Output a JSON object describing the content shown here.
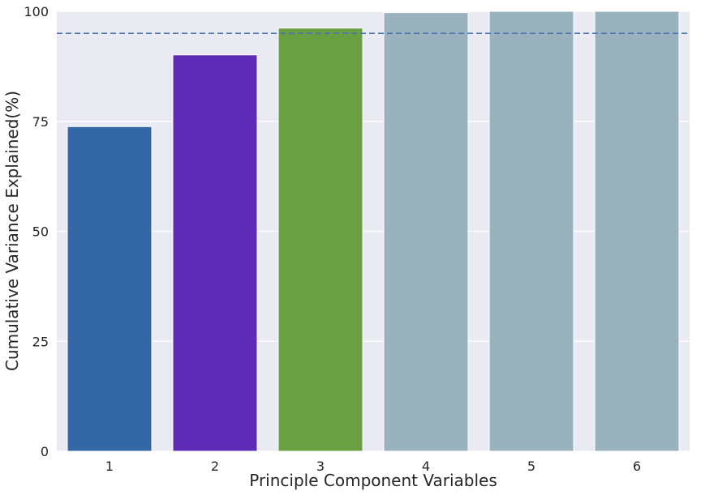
{
  "chart_data": {
    "type": "bar",
    "title": "",
    "xlabel": "Principle Component Variables",
    "ylabel": "Cumulative Variance Explained(%)",
    "categories": [
      "1",
      "2",
      "3",
      "4",
      "5",
      "6"
    ],
    "values": [
      73.8,
      90.1,
      96.2,
      99.7,
      100.0,
      100.0
    ],
    "bar_colors": [
      "#3468a4",
      "#5e2bb6",
      "#69a041",
      "#9ab2bd",
      "#9ab2bd",
      "#9ab2bd"
    ],
    "ylim": [
      0,
      100
    ],
    "yticks": [
      0,
      25,
      50,
      75,
      100
    ],
    "reference_line": {
      "y": 95,
      "style": "dashed",
      "color": "#4c72b0"
    },
    "grid": true,
    "background_color": "#eaeaf2",
    "legend": "none"
  }
}
